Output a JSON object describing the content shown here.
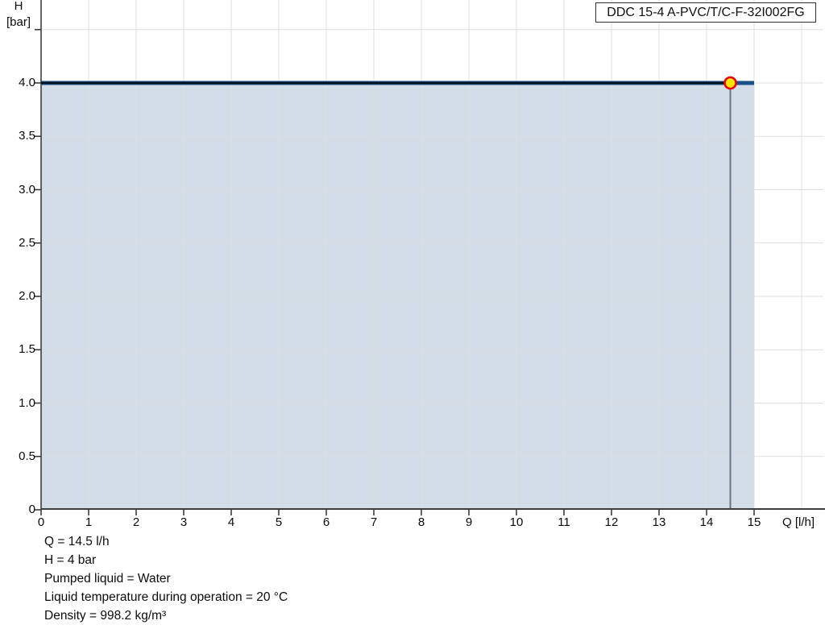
{
  "title_box": "DDC 15-4 A-PVC/T/C-F-32I002FG",
  "annotations": [
    "Q = 14.5 l/h",
    "H = 4 bar",
    "Pumped liquid = Water",
    "Liquid temperature during operation = 20 °C",
    "Density = 998.2 kg/m³"
  ],
  "chart_data": {
    "type": "area",
    "title": "DDC 15-4 A-PVC/T/C-F-32I002FG",
    "x_axis": {
      "label": "Q [l/h]",
      "ticks": [
        0,
        1,
        2,
        3,
        4,
        5,
        6,
        7,
        8,
        9,
        10,
        11,
        12,
        13,
        14,
        15
      ],
      "range": [
        0,
        16.5
      ],
      "grid_max": 16
    },
    "y_axis": {
      "label": "H",
      "unit": "[bar]",
      "tick_labels": [
        "0",
        "0.5",
        "1.0",
        "1.5",
        "2.0",
        "2.5",
        "3.0",
        "3.5",
        "4.0"
      ],
      "tick_values": [
        0,
        0.5,
        1.0,
        1.5,
        2.0,
        2.5,
        3.0,
        3.5,
        4.0
      ],
      "extra_unlabeled_tick": 4.5,
      "range": [
        0,
        4.77
      ]
    },
    "series": [
      {
        "name": "pump-curve-max",
        "points": [
          [
            0,
            4.0
          ],
          [
            15,
            4.0
          ]
        ],
        "color": "#1a5188",
        "width": 5
      },
      {
        "name": "pump-curve-selected",
        "points": [
          [
            0,
            4.0
          ],
          [
            14.5,
            4.0
          ]
        ],
        "color": "#00101f",
        "width": 2.4
      }
    ],
    "area": {
      "q_start": 0,
      "q_end": 15,
      "h": 4.0,
      "fill": "#d3dde8"
    },
    "duty_point": {
      "q": 14.5,
      "h": 4.0
    },
    "grid": true,
    "legend": false
  },
  "colors": {
    "grid": "#dbdfe3",
    "axis": "#3d3d3d",
    "duty_line": "#697582",
    "marker_fill": "#ffe600",
    "marker_stroke": "#e60000",
    "area_fill": "#d3dde8"
  }
}
